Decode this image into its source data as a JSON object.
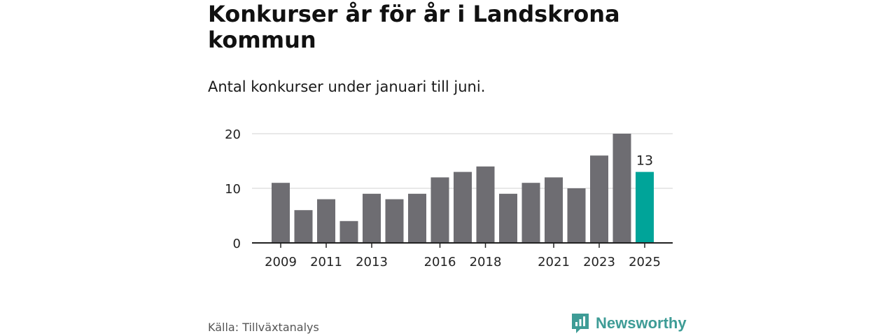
{
  "title": "Konkurser år för år i Landskrona kommun",
  "subtitle": "Antal konkurser under januari till juni.",
  "source": "Källa: Tillväxtanalys",
  "brand": {
    "name": "Newsworthy",
    "icon": "newsworthy-logo-icon",
    "color": "#3e9c96"
  },
  "chart_data": {
    "type": "bar",
    "categories": [
      "2009",
      "2010",
      "2011",
      "2012",
      "2013",
      "2014",
      "2015",
      "2016",
      "2017",
      "2018",
      "2019",
      "2020",
      "2021",
      "2022",
      "2023",
      "2024",
      "2025"
    ],
    "values": [
      11,
      6,
      8,
      4,
      9,
      8,
      9,
      12,
      13,
      14,
      9,
      11,
      12,
      10,
      16,
      20,
      13
    ],
    "x_tick_labels": [
      "2009",
      "2011",
      "2013",
      "2016",
      "2018",
      "2021",
      "2023",
      "2025"
    ],
    "y_ticks": [
      0,
      10,
      20
    ],
    "ylim": [
      0,
      20
    ],
    "highlight": {
      "category": "2025",
      "label": "13",
      "color": "#00a499"
    },
    "bar_color": "#6e6d72",
    "grid": true,
    "xlabel": "",
    "ylabel": ""
  }
}
